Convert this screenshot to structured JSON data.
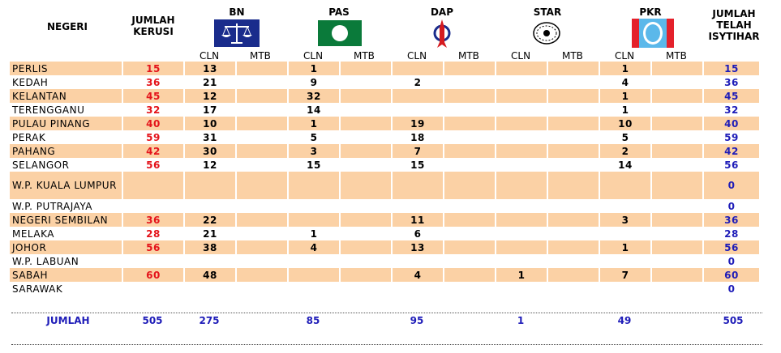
{
  "header": {
    "negeri": "NEGERI",
    "jumlah_kerusi": [
      "JUMLAH",
      "KERUSI"
    ],
    "jumlah_isytihar": [
      "JUMLAH",
      "TELAH",
      "ISYTIHAR"
    ]
  },
  "parties": [
    {
      "name": "BN",
      "logo": "bn-scales-icon",
      "color": "#1a2c8c"
    },
    {
      "name": "PAS",
      "logo": "pas-moon-icon",
      "color": "#0a7a3a"
    },
    {
      "name": "DAP",
      "logo": "dap-rocket-icon",
      "color": "#d51a1f"
    },
    {
      "name": "STAR",
      "logo": "star-emblem-icon",
      "color": "#000000"
    },
    {
      "name": "PKR",
      "logo": "pkr-eye-icon",
      "color": "#e4212b"
    }
  ],
  "sub_labels": {
    "cln": "CLN",
    "mtb": "MTB"
  },
  "rows": [
    {
      "state": "PERLIS",
      "seats": "15",
      "bn": "13",
      "pas": "1",
      "dap": "",
      "star": "",
      "pkr": "1",
      "declared": "15"
    },
    {
      "state": "KEDAH",
      "seats": "36",
      "bn": "21",
      "pas": "9",
      "dap": "2",
      "star": "",
      "pkr": "4",
      "declared": "36"
    },
    {
      "state": "KELANTAN",
      "seats": "45",
      "bn": "12",
      "pas": "32",
      "dap": "",
      "star": "",
      "pkr": "1",
      "declared": "45"
    },
    {
      "state": "TERENGGANU",
      "seats": "32",
      "bn": "17",
      "pas": "14",
      "dap": "",
      "star": "",
      "pkr": "1",
      "declared": "32"
    },
    {
      "state": "PULAU PINANG",
      "seats": "40",
      "bn": "10",
      "pas": "1",
      "dap": "19",
      "star": "",
      "pkr": "10",
      "declared": "40"
    },
    {
      "state": "PERAK",
      "seats": "59",
      "bn": "31",
      "pas": "5",
      "dap": "18",
      "star": "",
      "pkr": "5",
      "declared": "59"
    },
    {
      "state": "PAHANG",
      "seats": "42",
      "bn": "30",
      "pas": "3",
      "dap": "7",
      "star": "",
      "pkr": "2",
      "declared": "42"
    },
    {
      "state": "SELANGOR",
      "seats": "56",
      "bn": "12",
      "pas": "15",
      "dap": "15",
      "star": "",
      "pkr": "14",
      "declared": "56"
    },
    {
      "state": "W.P. KUALA LUMPUR",
      "seats": "",
      "bn": "",
      "pas": "",
      "dap": "",
      "star": "",
      "pkr": "",
      "declared": "0"
    },
    {
      "state": "W.P. PUTRAJAYA",
      "seats": "",
      "bn": "",
      "pas": "",
      "dap": "",
      "star": "",
      "pkr": "",
      "declared": "0"
    },
    {
      "state": "NEGERI SEMBILAN",
      "seats": "36",
      "bn": "22",
      "pas": "",
      "dap": "11",
      "star": "",
      "pkr": "3",
      "declared": "36"
    },
    {
      "state": "MELAKA",
      "seats": "28",
      "bn": "21",
      "pas": "1",
      "dap": "6",
      "star": "",
      "pkr": "",
      "declared": "28"
    },
    {
      "state": "JOHOR",
      "seats": "56",
      "bn": "38",
      "pas": "4",
      "dap": "13",
      "star": "",
      "pkr": "1",
      "declared": "56"
    },
    {
      "state": "W.P. LABUAN",
      "seats": "",
      "bn": "",
      "pas": "",
      "dap": "",
      "star": "",
      "pkr": "",
      "declared": "0"
    },
    {
      "state": "SABAH",
      "seats": "60",
      "bn": "48",
      "pas": "",
      "dap": "4",
      "star": "1",
      "pkr": "7",
      "declared": "60"
    },
    {
      "state": "SARAWAK",
      "seats": "",
      "bn": "",
      "pas": "",
      "dap": "",
      "star": "",
      "pkr": "",
      "declared": "0"
    }
  ],
  "totals": {
    "label": "JUMLAH",
    "seats": "505",
    "bn": "275",
    "pas": "85",
    "dap": "95",
    "star": "1",
    "pkr": "49",
    "declared": "505"
  }
}
